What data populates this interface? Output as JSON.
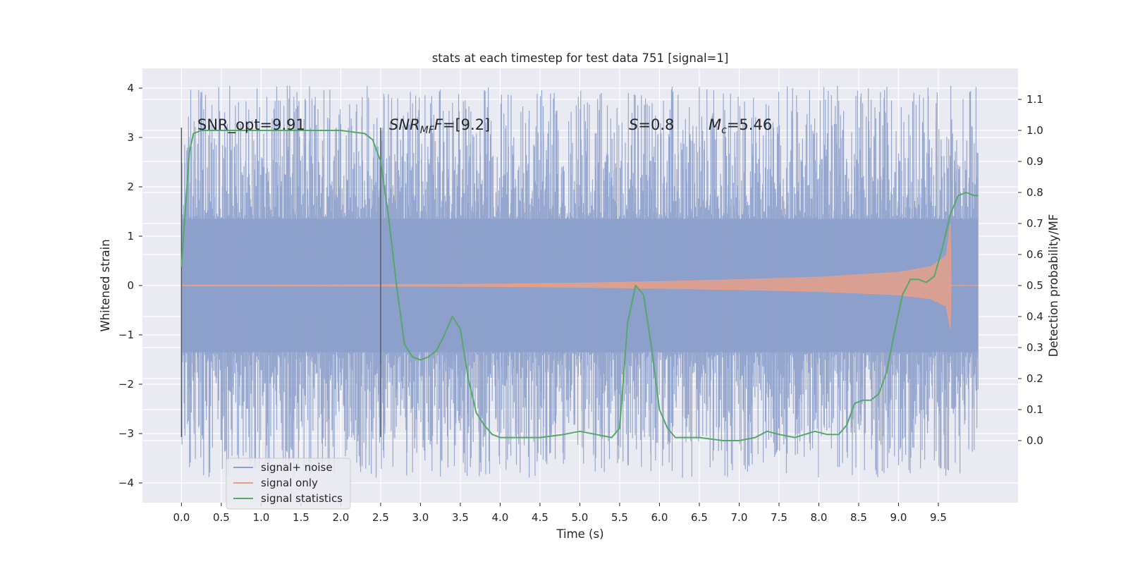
{
  "chart_data": {
    "type": "line",
    "title": "stats at each timestep for test data 751 [signal=1]",
    "xlabel": "Time (s)",
    "ylabel": "Whitened strain",
    "ylabel_right": "Detection probability/MF",
    "xlim": [
      -0.49,
      10.5
    ],
    "ylim": [
      -4.4,
      4.4
    ],
    "ylim_right": [
      -0.2,
      1.2
    ],
    "x_ticks": [
      "0.0",
      "0.5",
      "1.0",
      "1.5",
      "2.0",
      "2.5",
      "3.0",
      "3.5",
      "4.0",
      "4.5",
      "5.0",
      "5.5",
      "6.0",
      "6.5",
      "7.0",
      "7.5",
      "8.0",
      "8.5",
      "9.0",
      "9.5"
    ],
    "y_ticks": [
      "4",
      "3",
      "2",
      "1",
      "0",
      "−1",
      "−2",
      "−3",
      "−4"
    ],
    "y_ticks_right": [
      "1.1",
      "1.0",
      "0.9",
      "0.8",
      "0.7",
      "0.6",
      "0.5",
      "0.4",
      "0.3",
      "0.2",
      "0.1",
      "0.0"
    ],
    "grid": true,
    "legend_position": "lower-left",
    "annotations": {
      "snr_opt": "SNR_opt=9.91",
      "snr_mf_main": "SNR",
      "snr_mf_sub": "MF",
      "snr_mf_value": "=[9.2]",
      "s_symbol": "S",
      "s_value": "=0.8",
      "mc_symbol": "M",
      "mc_sub": "c",
      "mc_value": "=5.46"
    },
    "vertical_markers": [
      0.0,
      2.5
    ],
    "series": [
      {
        "name": "signal+ noise",
        "color": "#8da0cb",
        "noise_band": [
          -1.35,
          1.35
        ],
        "duration": [
          0.0,
          10.0
        ],
        "spike_range": [
          -3.9,
          4.05
        ]
      },
      {
        "name": "signal only",
        "color": "#e5a08a",
        "x": [
          0.0,
          1.0,
          2.0,
          3.0,
          4.0,
          5.0,
          6.0,
          7.0,
          8.0,
          9.0,
          9.4,
          9.6,
          9.65,
          9.66,
          10.0
        ],
        "envelope": [
          0.01,
          0.012,
          0.015,
          0.02,
          0.03,
          0.05,
          0.08,
          0.12,
          0.17,
          0.27,
          0.38,
          0.6,
          1.25,
          0.0,
          0.0
        ]
      },
      {
        "name": "signal statistics",
        "color": "#55a868",
        "x": [
          0.0,
          0.05,
          0.1,
          0.15,
          0.25,
          0.5,
          1.0,
          1.5,
          2.0,
          2.3,
          2.4,
          2.5,
          2.6,
          2.7,
          2.8,
          2.9,
          3.0,
          3.1,
          3.2,
          3.3,
          3.4,
          3.5,
          3.6,
          3.7,
          3.8,
          3.9,
          4.0,
          4.2,
          4.5,
          4.8,
          5.0,
          5.2,
          5.4,
          5.5,
          5.6,
          5.7,
          5.8,
          5.9,
          6.0,
          6.1,
          6.2,
          6.3,
          6.5,
          6.8,
          7.0,
          7.2,
          7.35,
          7.5,
          7.7,
          7.95,
          8.1,
          8.25,
          8.35,
          8.45,
          8.55,
          8.65,
          8.75,
          8.85,
          8.95,
          9.05,
          9.15,
          9.25,
          9.35,
          9.45,
          9.55,
          9.65,
          9.75,
          9.85,
          9.95,
          10.0
        ],
        "values": [
          0.56,
          0.75,
          0.93,
          0.99,
          1.0,
          1.0,
          1.0,
          1.0,
          1.0,
          0.99,
          0.97,
          0.9,
          0.72,
          0.5,
          0.31,
          0.27,
          0.26,
          0.27,
          0.29,
          0.34,
          0.4,
          0.36,
          0.2,
          0.09,
          0.05,
          0.02,
          0.01,
          0.01,
          0.01,
          0.02,
          0.03,
          0.02,
          0.01,
          0.04,
          0.38,
          0.5,
          0.47,
          0.3,
          0.1,
          0.04,
          0.01,
          0.01,
          0.01,
          0.0,
          0.0,
          0.01,
          0.03,
          0.02,
          0.01,
          0.03,
          0.02,
          0.02,
          0.05,
          0.12,
          0.13,
          0.13,
          0.15,
          0.22,
          0.35,
          0.47,
          0.52,
          0.52,
          0.51,
          0.53,
          0.62,
          0.73,
          0.79,
          0.8,
          0.79,
          0.79
        ]
      }
    ]
  }
}
